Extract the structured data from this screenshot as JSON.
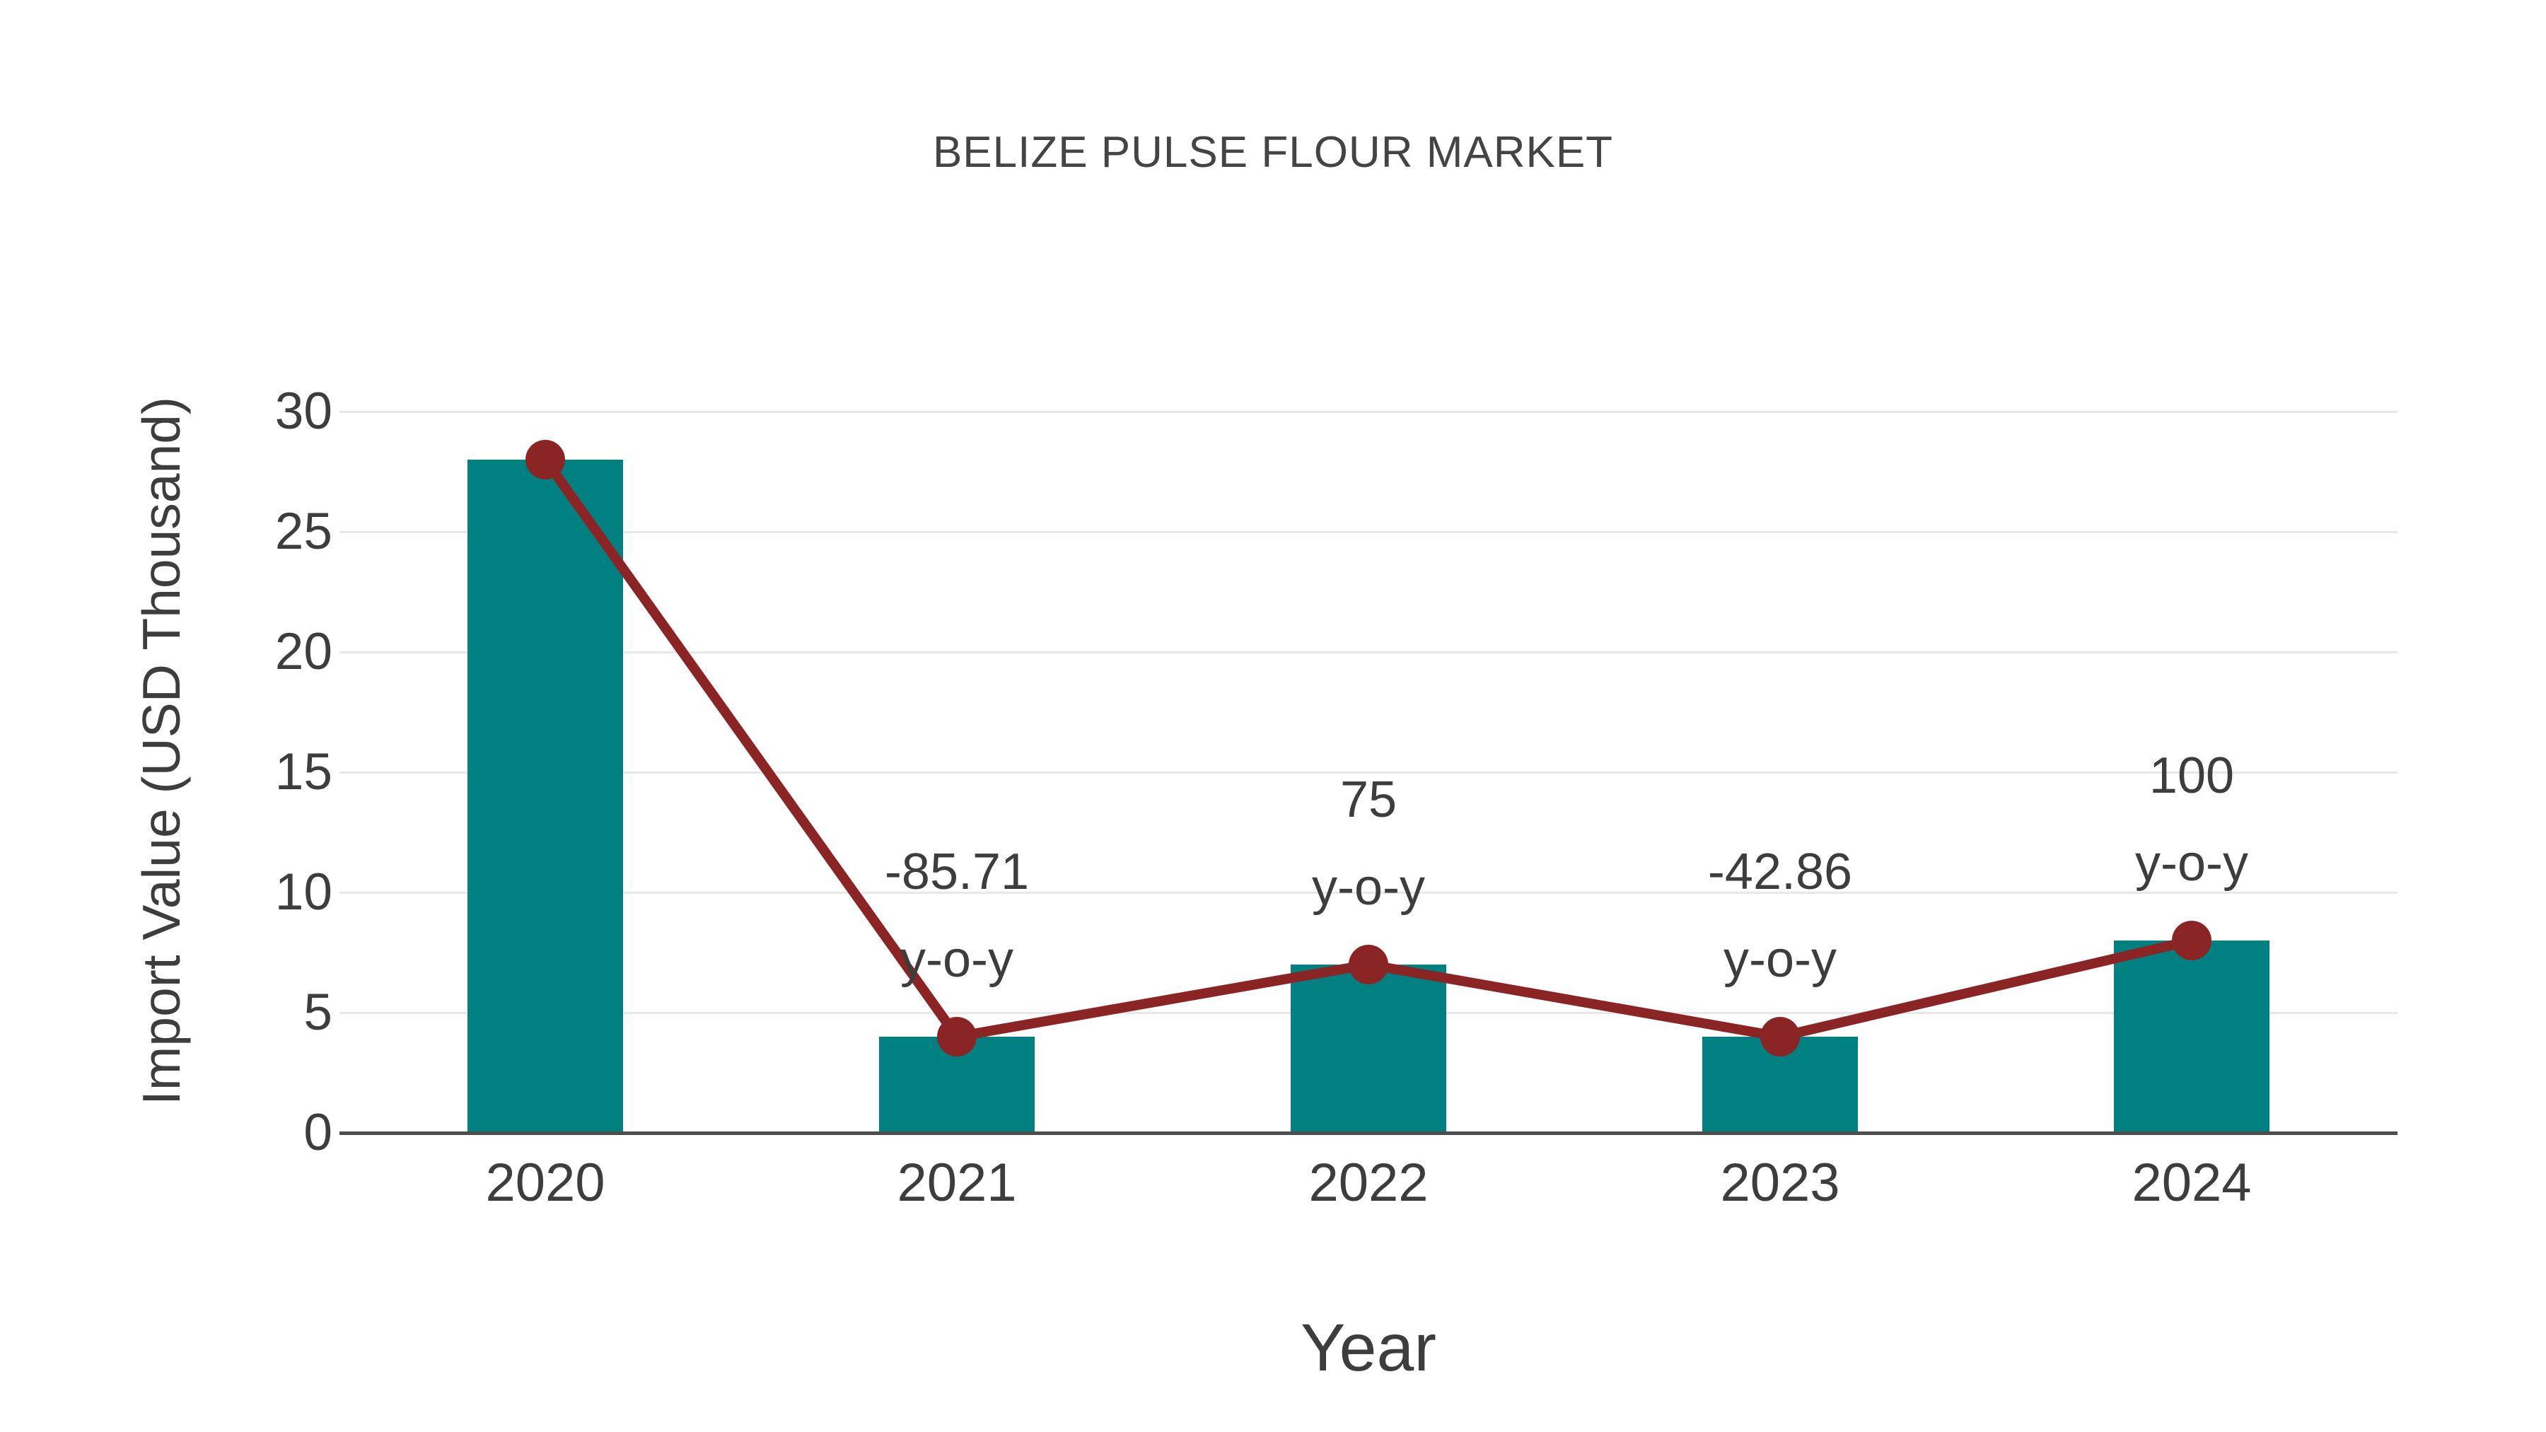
{
  "title": "BELIZE PULSE FLOUR MARKET",
  "chart_data": {
    "type": "bar",
    "title": "BELIZE PULSE FLOUR MARKET",
    "xlabel": "Year",
    "ylabel": "Import Value (USD Thousand)",
    "categories": [
      "2020",
      "2021",
      "2022",
      "2023",
      "2024"
    ],
    "series": [
      {
        "name": "import-value-bars",
        "type": "bar",
        "values": [
          28,
          4,
          7,
          4,
          8
        ]
      },
      {
        "name": "import-value-line",
        "type": "line",
        "values": [
          28,
          4,
          7,
          4,
          8
        ]
      }
    ],
    "annotations": [
      {
        "category": "2021",
        "line1": "-85.71",
        "line2": "y-o-y"
      },
      {
        "category": "2022",
        "line1": "75",
        "line2": "y-o-y"
      },
      {
        "category": "2023",
        "line1": "-42.86",
        "line2": "y-o-y"
      },
      {
        "category": "2024",
        "line1": "100",
        "line2": "y-o-y"
      }
    ],
    "yticks": [
      0,
      5,
      10,
      15,
      20,
      25,
      30
    ],
    "ylim": [
      0,
      30
    ],
    "grid": true,
    "legend": false
  },
  "colors": {
    "bar": "#008080",
    "line": "#8B2525",
    "marker": "#8B2525",
    "text": "#3d3d3d",
    "title_text": "#444444",
    "gridline": "#e8e8e8",
    "axis_line": "#4d4d4d",
    "background": "#ffffff"
  }
}
